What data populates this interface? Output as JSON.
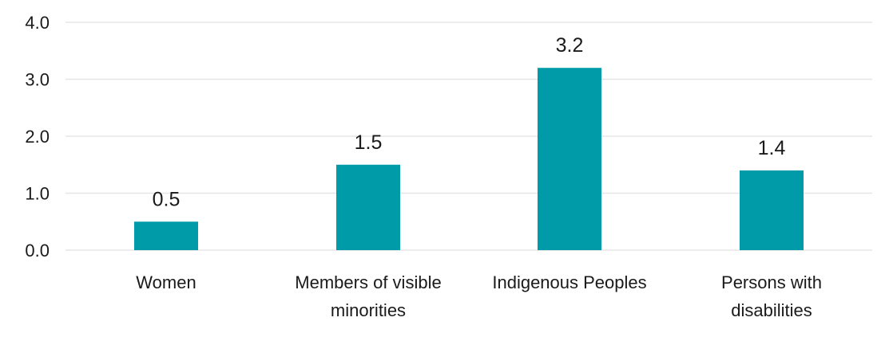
{
  "chart_data": {
    "type": "bar",
    "title": "",
    "xlabel": "",
    "ylabel": "",
    "categories": [
      [
        "Women"
      ],
      [
        "Members of visible",
        "minorities"
      ],
      [
        "Indigenous Peoples"
      ],
      [
        "Persons with",
        "disabilities"
      ]
    ],
    "values": [
      0.5,
      1.5,
      3.2,
      1.4
    ],
    "data_labels": [
      "0.5",
      "1.5",
      "3.2",
      "1.4"
    ],
    "yticks": [
      "0.0",
      "1.0",
      "2.0",
      "3.0",
      "4.0"
    ],
    "ylim": [
      0,
      4
    ],
    "grid": true,
    "legend": "none",
    "colors": {
      "bar": "#009ba8",
      "grid": "#e6e6e6",
      "text": "#1a1a1a"
    }
  }
}
